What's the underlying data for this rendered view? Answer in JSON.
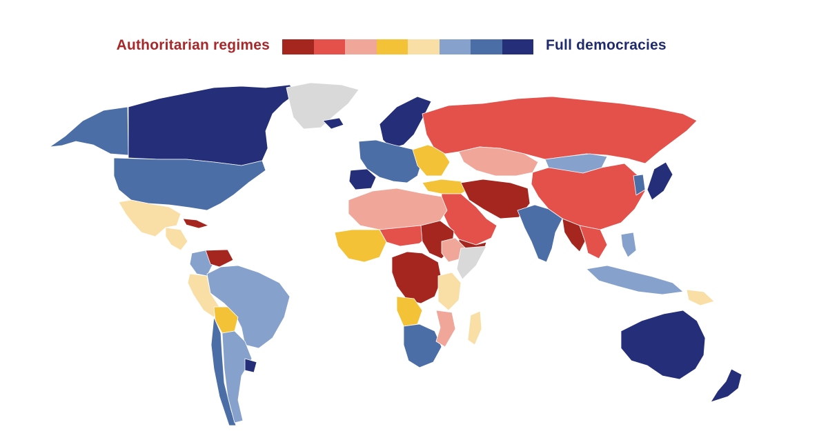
{
  "legend": {
    "left_label": "Authoritarian regimes",
    "right_label": "Full democracies",
    "left_label_color": "#a8282a",
    "right_label_color": "#1f2b6e",
    "scale": [
      {
        "level": 1,
        "color": "#a5261f"
      },
      {
        "level": 2,
        "color": "#e4504a"
      },
      {
        "level": 3,
        "color": "#f0a79a"
      },
      {
        "level": 4,
        "color": "#f4c237"
      },
      {
        "level": 5,
        "color": "#f9dfa6"
      },
      {
        "level": 6,
        "color": "#86a1cc"
      },
      {
        "level": 7,
        "color": "#4c6ea7"
      },
      {
        "level": 8,
        "color": "#252f79"
      }
    ],
    "no_data_color": "#d9d9d9"
  },
  "map": {
    "regions": [
      {
        "name": "Alaska",
        "level": 7
      },
      {
        "name": "Canada",
        "level": 8
      },
      {
        "name": "Greenland",
        "level": 0
      },
      {
        "name": "United States",
        "level": 7
      },
      {
        "name": "Mexico",
        "level": 5
      },
      {
        "name": "Central America",
        "level": 5
      },
      {
        "name": "Cuba",
        "level": 1
      },
      {
        "name": "Colombia",
        "level": 6
      },
      {
        "name": "Venezuela",
        "level": 1
      },
      {
        "name": "Brazil",
        "level": 6
      },
      {
        "name": "Peru",
        "level": 5
      },
      {
        "name": "Bolivia",
        "level": 4
      },
      {
        "name": "Chile",
        "level": 7
      },
      {
        "name": "Argentina",
        "level": 6
      },
      {
        "name": "Uruguay",
        "level": 8
      },
      {
        "name": "Iceland",
        "level": 8
      },
      {
        "name": "Scandinavia",
        "level": 8
      },
      {
        "name": "Western Europe",
        "level": 7
      },
      {
        "name": "Iberia",
        "level": 8
      },
      {
        "name": "Eastern Europe",
        "level": 4
      },
      {
        "name": "Russia",
        "level": 2
      },
      {
        "name": "Kazakhstan",
        "level": 3
      },
      {
        "name": "Mongolia",
        "level": 6
      },
      {
        "name": "China",
        "level": 2
      },
      {
        "name": "Turkey",
        "level": 4
      },
      {
        "name": "Iran",
        "level": 1
      },
      {
        "name": "Arabian Peninsula",
        "level": 2
      },
      {
        "name": "Yemen",
        "level": 1
      },
      {
        "name": "India",
        "level": 7
      },
      {
        "name": "Myanmar",
        "level": 1
      },
      {
        "name": "Southeast Asia",
        "level": 2
      },
      {
        "name": "Japan",
        "level": 8
      },
      {
        "name": "Korea",
        "level": 7
      },
      {
        "name": "Philippines",
        "level": 6
      },
      {
        "name": "Indonesia",
        "level": 6
      },
      {
        "name": "Papua New Guinea",
        "level": 5
      },
      {
        "name": "Australia",
        "level": 8
      },
      {
        "name": "New Zealand",
        "level": 8
      },
      {
        "name": "North Africa",
        "level": 3
      },
      {
        "name": "Sahel",
        "level": 2
      },
      {
        "name": "Sudan",
        "level": 1
      },
      {
        "name": "West Africa",
        "level": 4
      },
      {
        "name": "Central Africa",
        "level": 1
      },
      {
        "name": "Ethiopia",
        "level": 3
      },
      {
        "name": "Somalia",
        "level": 0
      },
      {
        "name": "East Africa",
        "level": 5
      },
      {
        "name": "Angola",
        "level": 4
      },
      {
        "name": "Southern Africa",
        "level": 7
      },
      {
        "name": "Mozambique",
        "level": 3
      },
      {
        "name": "Madagascar",
        "level": 5
      }
    ]
  }
}
